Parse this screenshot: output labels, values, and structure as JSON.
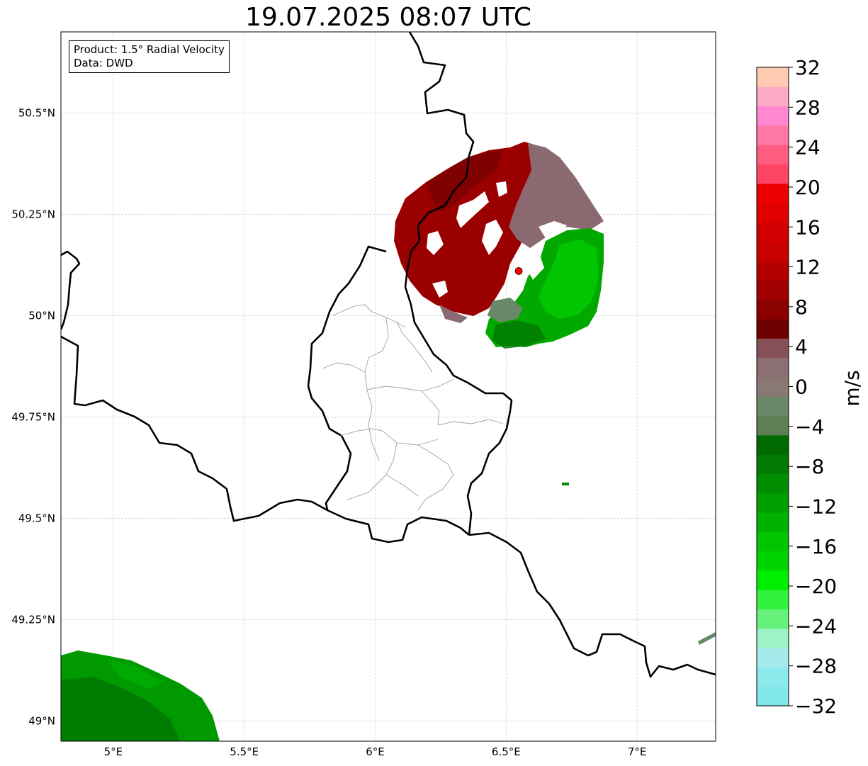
{
  "title": "19.07.2025 08:07 UTC",
  "info": {
    "product": "Product: 1.5° Radial Velocity",
    "data": "Data: DWD"
  },
  "map": {
    "lon_range": [
      4.8,
      7.3
    ],
    "lat_range": [
      48.95,
      50.7
    ],
    "lon_ticks": [
      {
        "value": 5.0,
        "label": "5°E"
      },
      {
        "value": 5.5,
        "label": "5.5°E"
      },
      {
        "value": 6.0,
        "label": "6°E"
      },
      {
        "value": 6.5,
        "label": "6.5°E"
      },
      {
        "value": 7.0,
        "label": "7°E"
      }
    ],
    "lat_ticks": [
      {
        "value": 50.5,
        "label": "50.5°N"
      },
      {
        "value": 50.25,
        "label": "50.25°N"
      },
      {
        "value": 50.0,
        "label": "50°N"
      },
      {
        "value": 49.75,
        "label": "49.75°N"
      },
      {
        "value": 49.5,
        "label": "49.5°N"
      },
      {
        "value": 49.25,
        "label": "49.25°N"
      },
      {
        "value": 49.0,
        "label": "49°N"
      }
    ],
    "gridlines": true,
    "radar_site": {
      "lon": 6.548,
      "lat": 50.11,
      "color": "#ff0000"
    }
  },
  "colorbar": {
    "unit": "m/s",
    "min": -32,
    "max": 32,
    "step": 4,
    "tick_values": [
      32,
      28,
      24,
      20,
      16,
      12,
      8,
      4,
      0,
      -4,
      -8,
      -12,
      -16,
      -20,
      -24,
      -28,
      -32
    ],
    "tick_labels": [
      "32",
      "28",
      "24",
      "20",
      "16",
      "12",
      "8",
      "4",
      "0",
      "−4",
      "−8",
      "−12",
      "−16",
      "−20",
      "−24",
      "−28",
      "−32"
    ],
    "colors_low_to_high": [
      "#7fe6ea",
      "#8ce9ec",
      "#a6ebec",
      "#9ef2c8",
      "#66f27a",
      "#33f23f",
      "#00ef00",
      "#00d400",
      "#00c500",
      "#00b200",
      "#009f00",
      "#008c00",
      "#007a00",
      "#006a00",
      "#5e7e56",
      "#6a8868",
      "#8a7874",
      "#8c6f72",
      "#874f58",
      "#6e0000",
      "#8b0000",
      "#a00000",
      "#b50000",
      "#c80000",
      "#d20000",
      "#e00000",
      "#ee0000",
      "#ff4565",
      "#ff5c80",
      "#ff78a6",
      "#ff88d0",
      "#ffa9c8",
      "#ffcaaf"
    ]
  }
}
